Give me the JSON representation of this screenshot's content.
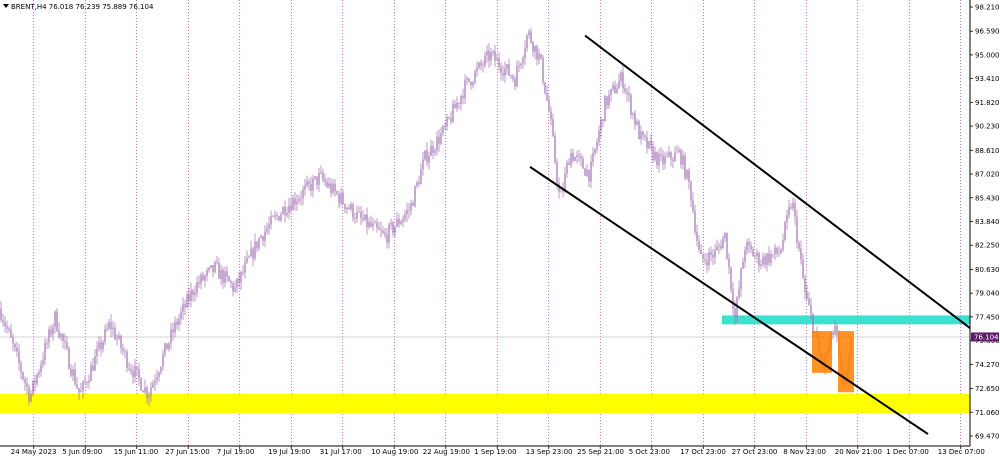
{
  "chart_data": {
    "type": "candlestick",
    "symbol_header": "BRENT,H4  76.018 76.239 75.889 76.104",
    "current_price": "76.104",
    "y_ticks": [
      "98.210",
      "96.590",
      "95.000",
      "93.410",
      "91.820",
      "90.230",
      "88.610",
      "87.020",
      "85.430",
      "83.840",
      "82.250",
      "80.630",
      "79.040",
      "77.450",
      "75.860",
      "74.270",
      "72.650",
      "71.060",
      "69.470"
    ],
    "ylim": [
      69.47,
      98.21
    ],
    "x_labels": [
      "24 May 2023",
      "5 Jun 09:00",
      "15 Jun 11:00",
      "27 Jun 15:00",
      "7 Jul 19:00",
      "19 Jul 19:00",
      "31 Jul 17:00",
      "10 Aug 19:00",
      "22 Aug 19:00",
      "1 Sep 19:00",
      "13 Sep 23:00",
      "25 Sep 21:00",
      "5 Oct 23:00",
      "17 Oct 23:00",
      "27 Oct 23:00",
      "8 Nov 23:00",
      "20 Nov 21:00",
      "1 Dec 07:00",
      "13 Dec 07:00"
    ],
    "price_path": [
      [
        0,
        78.0
      ],
      [
        30,
        72.1
      ],
      [
        55,
        77.4
      ],
      [
        80,
        72.2
      ],
      [
        110,
        77.0
      ],
      [
        128,
        74.4
      ],
      [
        148,
        72.3
      ],
      [
        175,
        76.8
      ],
      [
        195,
        79.5
      ],
      [
        215,
        80.7
      ],
      [
        235,
        79.3
      ],
      [
        260,
        82.8
      ],
      [
        285,
        84.8
      ],
      [
        305,
        85.9
      ],
      [
        320,
        86.8
      ],
      [
        340,
        85.4
      ],
      [
        360,
        84.0
      ],
      [
        385,
        82.8
      ],
      [
        410,
        84.7
      ],
      [
        425,
        88.1
      ],
      [
        445,
        90.0
      ],
      [
        465,
        92.9
      ],
      [
        490,
        95.0
      ],
      [
        515,
        93.4
      ],
      [
        528,
        96.5
      ],
      [
        540,
        94.7
      ],
      [
        550,
        90.8
      ],
      [
        560,
        85.1
      ],
      [
        570,
        88.5
      ],
      [
        590,
        87.0
      ],
      [
        605,
        91.7
      ],
      [
        622,
        93.5
      ],
      [
        640,
        89.5
      ],
      [
        660,
        87.8
      ],
      [
        680,
        88.4
      ],
      [
        690,
        86.1
      ],
      [
        700,
        81.2
      ],
      [
        715,
        81.7
      ],
      [
        725,
        82.9
      ],
      [
        735,
        77.4
      ],
      [
        745,
        82.2
      ],
      [
        760,
        81.2
      ],
      [
        780,
        81.8
      ],
      [
        792,
        85.3
      ],
      [
        805,
        79.0
      ],
      [
        815,
        76.4
      ],
      [
        822,
        74.0
      ],
      [
        835,
        76.8
      ],
      [
        843,
        72.6
      ],
      [
        852,
        75.9
      ]
    ],
    "zones": [
      {
        "name": "support",
        "color": "#ffff00",
        "y_range": [
          71.0,
          72.3
        ]
      },
      {
        "name": "resistance",
        "color": "#40e0d0",
        "y_range": [
          76.95,
          77.55
        ]
      }
    ],
    "channel_lines": [
      {
        "points": [
          [
            585,
            96.3
          ],
          [
            970,
            76.7
          ]
        ]
      },
      {
        "points": [
          [
            530,
            87.5
          ],
          [
            928,
            69.6
          ]
        ]
      }
    ],
    "highlight_boxes": [
      {
        "color": "#ff8000",
        "x_range": [
          812,
          832
        ],
        "y_range": [
          73.7,
          76.5
        ]
      },
      {
        "color": "#ff8000",
        "x_range": [
          838,
          854
        ],
        "y_range": [
          72.4,
          76.5
        ]
      }
    ],
    "colors": {
      "candles": "#a070b0",
      "grid": "#b000b0",
      "current_price_bg": "#5e1a68"
    }
  }
}
